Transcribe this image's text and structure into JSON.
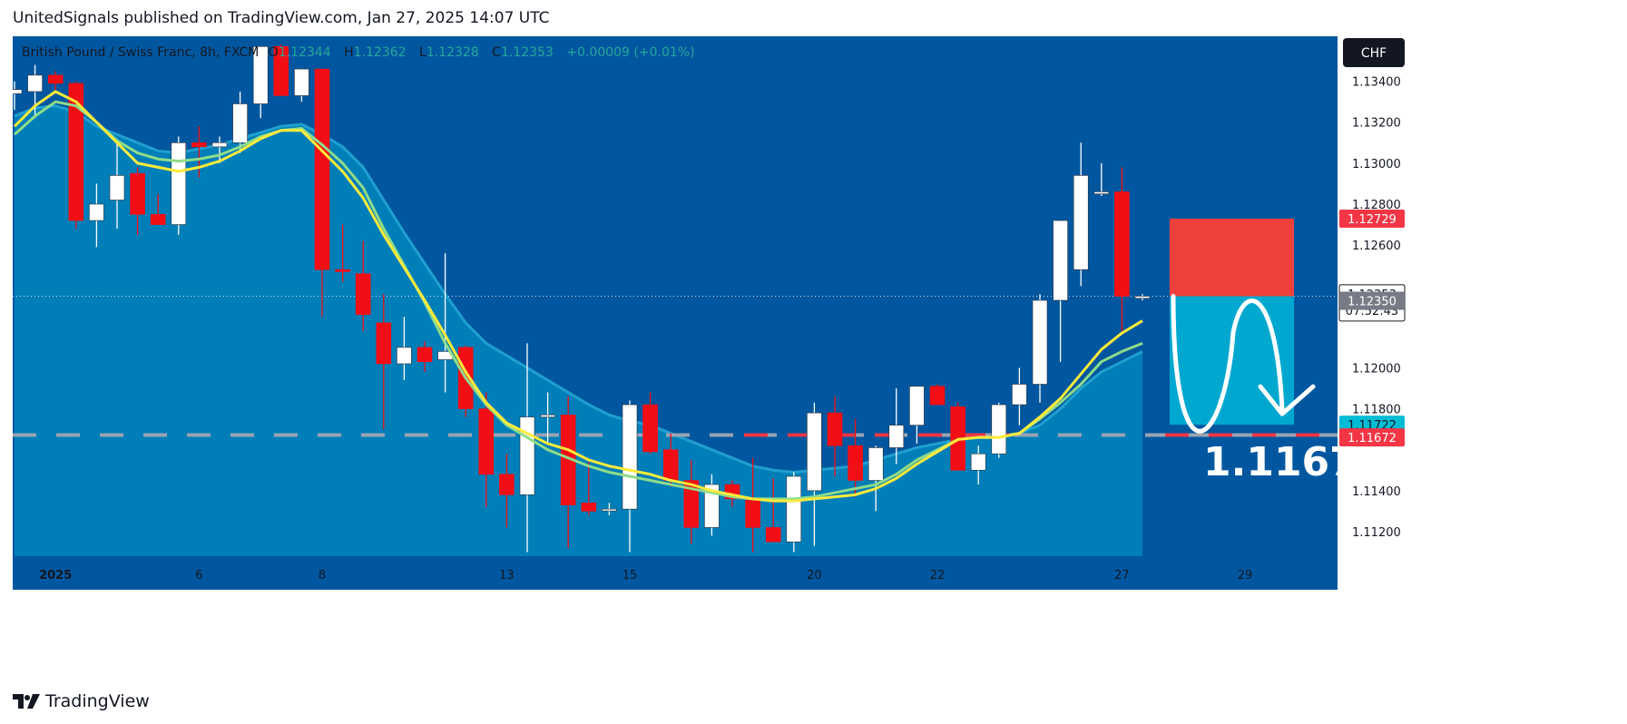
{
  "header": {
    "publish_text": "UnitedSignals published on TradingView.com, Jan 27, 2025 14:07 UTC"
  },
  "footer": {
    "logo_text": "TradingView",
    "logo_icon": "tradingview-logo-icon"
  },
  "colors": {
    "bg": "#00579f",
    "band": "#0085bc",
    "bull": "#ffffff",
    "bear": "#f20e15",
    "fast_ma": "#ffeb3b",
    "slow_ma": "#8fdc8a",
    "stop_zone": "#f0403c",
    "target_zone": "#00a8d0",
    "stop_label": "#f23645",
    "target_label": "#00bcd4"
  },
  "legend": {
    "symbol": "British Pound / Swiss Franc, 8h, FXCM",
    "o_label": "O",
    "o_value": "1.12344",
    "h_label": "H",
    "h_value": "1.12362",
    "l_label": "L",
    "l_value": "1.12328",
    "c_label": "C",
    "c_value": "1.12353",
    "change": "+0.00009 (+0.01%)"
  },
  "currency_button": "CHF",
  "price_labels": {
    "stop": "1.12729",
    "last": "1.12353",
    "countdown": "07:52:43",
    "entry": "1.12350",
    "target": "1.11722",
    "support": "1.11672"
  },
  "target_annotation": "1.1167",
  "chart_data": {
    "type": "candlestick",
    "timeframe": "8h",
    "y_axis": {
      "ticks": [
        "1.13400",
        "1.13200",
        "1.13000",
        "1.12800",
        "1.12600",
        "1.12000",
        "1.11800",
        "1.11400",
        "1.11200"
      ],
      "range": [
        1.1108,
        1.1362
      ]
    },
    "x_axis": {
      "labels": [
        {
          "text": "2025",
          "bar": 2
        },
        {
          "text": "6",
          "bar": 9
        },
        {
          "text": "8",
          "bar": 15
        },
        {
          "text": "13",
          "bar": 24
        },
        {
          "text": "15",
          "bar": 30
        },
        {
          "text": "20",
          "bar": 39
        },
        {
          "text": "22",
          "bar": 45
        },
        {
          "text": "27",
          "bar": 54
        },
        {
          "text": "29",
          "bar": 60
        }
      ]
    },
    "candles": [
      [
        1.1334,
        1.134,
        1.1326,
        1.1336
      ],
      [
        1.1335,
        1.1348,
        1.1322,
        1.1343
      ],
      [
        1.1343,
        1.1345,
        1.1335,
        1.1339
      ],
      [
        1.1339,
        1.134,
        1.1268,
        1.1272
      ],
      [
        1.1272,
        1.129,
        1.1259,
        1.128
      ],
      [
        1.1282,
        1.1312,
        1.1268,
        1.1294
      ],
      [
        1.1295,
        1.1298,
        1.1265,
        1.1275
      ],
      [
        1.1275,
        1.1285,
        1.127,
        1.127
      ],
      [
        1.127,
        1.1313,
        1.1265,
        1.131
      ],
      [
        1.131,
        1.1318,
        1.1293,
        1.1308
      ],
      [
        1.1308,
        1.1313,
        1.13,
        1.131
      ],
      [
        1.131,
        1.1335,
        1.1305,
        1.1329
      ],
      [
        1.1329,
        1.1357,
        1.1322,
        1.1357
      ],
      [
        1.1357,
        1.1358,
        1.1333,
        1.1333
      ],
      [
        1.1333,
        1.1346,
        1.133,
        1.1346
      ],
      [
        1.1346,
        1.1346,
        1.1225,
        1.1248
      ],
      [
        1.1248,
        1.127,
        1.1242,
        1.1247
      ],
      [
        1.1246,
        1.1262,
        1.1218,
        1.1226
      ],
      [
        1.1222,
        1.1236,
        1.117,
        1.1202
      ],
      [
        1.1202,
        1.1225,
        1.1194,
        1.121
      ],
      [
        1.121,
        1.1213,
        1.1198,
        1.1203
      ],
      [
        1.1204,
        1.1256,
        1.1188,
        1.1208
      ],
      [
        1.121,
        1.1211,
        1.1176,
        1.118
      ],
      [
        1.118,
        1.1188,
        1.1132,
        1.1148
      ],
      [
        1.1148,
        1.1158,
        1.1122,
        1.1138
      ],
      [
        1.1138,
        1.1212,
        1.111,
        1.1176
      ],
      [
        1.1176,
        1.1188,
        1.1163,
        1.1177
      ],
      [
        1.1177,
        1.1186,
        1.1112,
        1.1133
      ],
      [
        1.1134,
        1.1154,
        1.1128,
        1.113
      ],
      [
        1.1131,
        1.1134,
        1.1128,
        1.1131
      ],
      [
        1.1131,
        1.1184,
        1.111,
        1.1182
      ],
      [
        1.1182,
        1.1188,
        1.1158,
        1.1159
      ],
      [
        1.116,
        1.1168,
        1.1142,
        1.1145
      ],
      [
        1.1145,
        1.1155,
        1.1114,
        1.1122
      ],
      [
        1.1122,
        1.1148,
        1.1118,
        1.1143
      ],
      [
        1.1143,
        1.1145,
        1.1132,
        1.1136
      ],
      [
        1.1136,
        1.1156,
        1.111,
        1.1122
      ],
      [
        1.1122,
        1.1146,
        1.1115,
        1.1115
      ],
      [
        1.1115,
        1.1149,
        1.111,
        1.1147
      ],
      [
        1.114,
        1.1183,
        1.1113,
        1.1178
      ],
      [
        1.1178,
        1.1186,
        1.1147,
        1.1162
      ],
      [
        1.1162,
        1.1175,
        1.1137,
        1.1145
      ],
      [
        1.1145,
        1.1162,
        1.113,
        1.1161
      ],
      [
        1.1161,
        1.119,
        1.1153,
        1.1172
      ],
      [
        1.1172,
        1.1191,
        1.1163,
        1.1191
      ],
      [
        1.1191,
        1.1192,
        1.1182,
        1.1182
      ],
      [
        1.1181,
        1.1183,
        1.115,
        1.115
      ],
      [
        1.115,
        1.1162,
        1.1143,
        1.1158
      ],
      [
        1.1158,
        1.1183,
        1.1156,
        1.1182
      ],
      [
        1.1182,
        1.12,
        1.1172,
        1.1192
      ],
      [
        1.1192,
        1.1236,
        1.1183,
        1.1233
      ],
      [
        1.1233,
        1.1272,
        1.1203,
        1.1272
      ],
      [
        1.1248,
        1.131,
        1.124,
        1.1294
      ],
      [
        1.1285,
        1.13,
        1.1284,
        1.1286
      ],
      [
        1.1286,
        1.1298,
        1.1218,
        1.1235
      ],
      [
        1.1234,
        1.1236,
        1.1233,
        1.1235
      ]
    ],
    "fast_ma": [
      1.1318,
      1.1328,
      1.1335,
      1.133,
      1.132,
      1.131,
      1.13,
      1.1298,
      1.1296,
      1.1298,
      1.1301,
      1.1306,
      1.1312,
      1.1316,
      1.1316,
      1.1306,
      1.1296,
      1.1283,
      1.1265,
      1.1249,
      1.1233,
      1.1216,
      1.1198,
      1.1183,
      1.1173,
      1.1168,
      1.1163,
      1.116,
      1.1155,
      1.1152,
      1.115,
      1.1148,
      1.1145,
      1.1143,
      1.114,
      1.1138,
      1.1136,
      1.1135,
      1.1135,
      1.1136,
      1.1137,
      1.1138,
      1.1141,
      1.1146,
      1.1153,
      1.1159,
      1.1165,
      1.1166,
      1.1166,
      1.1168,
      1.1176,
      1.1185,
      1.1197,
      1.1209,
      1.1217,
      1.1223
    ],
    "slow_ma": [
      1.1314,
      1.1323,
      1.133,
      1.1328,
      1.132,
      1.1311,
      1.1305,
      1.1302,
      1.1301,
      1.1302,
      1.1304,
      1.1308,
      1.1313,
      1.1316,
      1.1317,
      1.1309,
      1.13,
      1.1288,
      1.1268,
      1.125,
      1.1232,
      1.1212,
      1.1195,
      1.1182,
      1.1172,
      1.1166,
      1.116,
      1.1156,
      1.1152,
      1.1149,
      1.1147,
      1.1145,
      1.1143,
      1.1141,
      1.1139,
      1.1137,
      1.1136,
      1.1136,
      1.1136,
      1.1137,
      1.1139,
      1.1141,
      1.1143,
      1.1148,
      1.1155,
      1.116,
      1.1165,
      1.1166,
      1.1166,
      1.1168,
      1.1175,
      1.1183,
      1.1192,
      1.1203,
      1.1208,
      1.1212
    ],
    "band_top": [
      1.1323,
      1.1327,
      1.1328,
      1.1325,
      1.1318,
      1.1314,
      1.131,
      1.1306,
      1.1305,
      1.1307,
      1.1309,
      1.1312,
      1.1315,
      1.1318,
      1.1319,
      1.1314,
      1.1308,
      1.1298,
      1.1282,
      1.1266,
      1.1251,
      1.1236,
      1.1222,
      1.1212,
      1.1206,
      1.12,
      1.1194,
      1.1188,
      1.1182,
      1.1177,
      1.1174,
      1.1172,
      1.1168,
      1.1164,
      1.116,
      1.1156,
      1.1152,
      1.115,
      1.1149,
      1.115,
      1.1151,
      1.1152,
      1.1155,
      1.1158,
      1.1161,
      1.1163,
      1.1165,
      1.1167,
      1.1167,
      1.1168,
      1.1172,
      1.118,
      1.119,
      1.1198,
      1.1203,
      1.1208
    ],
    "levels": {
      "stop": 1.12729,
      "entry": 1.1235,
      "target": 1.11722,
      "support": 1.11672
    }
  }
}
